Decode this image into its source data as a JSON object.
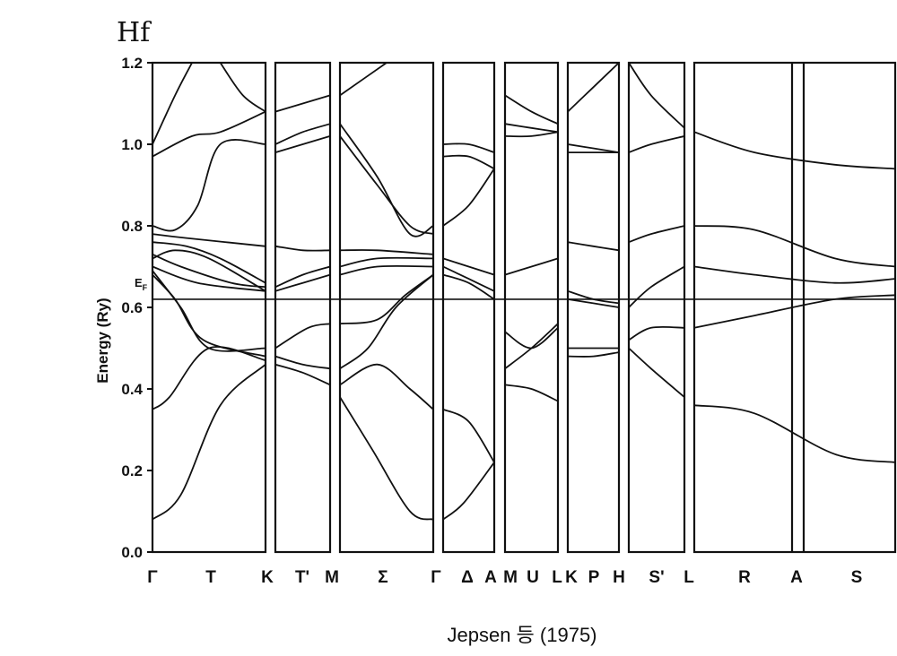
{
  "title": "Hf",
  "caption": "Jepsen 등 (1975)",
  "chart_data": {
    "type": "line",
    "title": "Hf",
    "ylabel": "Energy (Ry)",
    "xlabel": "",
    "ylim": [
      0.0,
      1.2
    ],
    "y_ticks": [
      "0.0",
      "0.2",
      "0.4",
      "0.6",
      "0.8",
      "1.0",
      "1.2"
    ],
    "fermi_level": {
      "label": "E",
      "subscript": "F",
      "energy": 0.62
    },
    "k_points": [
      "Γ",
      "T",
      "K",
      "T'",
      "M",
      "Σ",
      "Γ",
      "Δ",
      "A",
      "M",
      "U",
      "L",
      "K",
      "P",
      "H",
      "S'",
      "L",
      "R",
      "A",
      "S"
    ],
    "panels": [
      {
        "path": "Γ–T–K",
        "start": "Γ",
        "end": "K"
      },
      {
        "path": "K–T'–M",
        "start": "K",
        "end": "M"
      },
      {
        "path": "M–Σ–Γ",
        "start": "M",
        "end": "Γ"
      },
      {
        "path": "Γ–Δ–A",
        "start": "Γ",
        "end": "A"
      },
      {
        "path": "M–U–L",
        "start": "M",
        "end": "L"
      },
      {
        "path": "K–P–H",
        "start": "K",
        "end": "H"
      },
      {
        "path": "H–S'–L",
        "start": "H",
        "end": "L"
      },
      {
        "path": "L–R–A–S",
        "start": "L",
        "end": "S"
      }
    ],
    "bands": [
      {
        "panel": 0,
        "points": [
          [
            0,
            0.08
          ],
          [
            0.25,
            0.14
          ],
          [
            0.6,
            0.36
          ],
          [
            1,
            0.46
          ]
        ]
      },
      {
        "panel": 0,
        "points": [
          [
            0,
            0.35
          ],
          [
            0.15,
            0.38
          ],
          [
            0.5,
            0.5
          ],
          [
            1,
            0.47
          ]
        ]
      },
      {
        "panel": 0,
        "points": [
          [
            0,
            0.68
          ],
          [
            0.2,
            0.62
          ],
          [
            0.45,
            0.52
          ],
          [
            1,
            0.48
          ]
        ]
      },
      {
        "panel": 0,
        "points": [
          [
            0,
            0.69
          ],
          [
            0.25,
            0.6
          ],
          [
            0.5,
            0.5
          ],
          [
            1,
            0.5
          ]
        ]
      },
      {
        "panel": 0,
        "points": [
          [
            0,
            0.7
          ],
          [
            0.4,
            0.66
          ],
          [
            1,
            0.64
          ]
        ]
      },
      {
        "panel": 0,
        "points": [
          [
            0,
            0.72
          ],
          [
            0.2,
            0.74
          ],
          [
            0.5,
            0.72
          ],
          [
            1,
            0.64
          ]
        ]
      },
      {
        "panel": 0,
        "points": [
          [
            0,
            0.73
          ],
          [
            0.25,
            0.7
          ],
          [
            0.7,
            0.66
          ],
          [
            1,
            0.65
          ]
        ]
      },
      {
        "panel": 0,
        "points": [
          [
            0,
            0.76
          ],
          [
            0.3,
            0.75
          ],
          [
            0.6,
            0.72
          ],
          [
            1,
            0.66
          ]
        ]
      },
      {
        "panel": 0,
        "points": [
          [
            0,
            0.78
          ],
          [
            0.3,
            0.77
          ],
          [
            1,
            0.75
          ]
        ]
      },
      {
        "panel": 0,
        "points": [
          [
            0,
            0.8
          ],
          [
            0.2,
            0.79
          ],
          [
            0.4,
            0.85
          ],
          [
            0.6,
            1.0
          ],
          [
            1,
            1.0
          ]
        ]
      },
      {
        "panel": 0,
        "points": [
          [
            0,
            0.97
          ],
          [
            0.35,
            1.02
          ],
          [
            0.6,
            1.03
          ],
          [
            1,
            1.08
          ]
        ]
      },
      {
        "panel": 0,
        "points": [
          [
            0,
            1.0
          ],
          [
            0.2,
            1.12
          ],
          [
            0.35,
            1.2
          ]
        ]
      },
      {
        "panel": 0,
        "points": [
          [
            0.6,
            1.2
          ],
          [
            0.8,
            1.12
          ],
          [
            1,
            1.08
          ]
        ]
      },
      {
        "panel": 1,
        "points": [
          [
            0,
            0.46
          ],
          [
            0.5,
            0.44
          ],
          [
            1,
            0.41
          ]
        ]
      },
      {
        "panel": 1,
        "points": [
          [
            0,
            0.48
          ],
          [
            0.5,
            0.46
          ],
          [
            1,
            0.45
          ]
        ]
      },
      {
        "panel": 1,
        "points": [
          [
            0,
            0.5
          ],
          [
            0.6,
            0.55
          ],
          [
            1,
            0.56
          ]
        ]
      },
      {
        "panel": 1,
        "points": [
          [
            0,
            0.64
          ],
          [
            0.5,
            0.66
          ],
          [
            1,
            0.68
          ]
        ]
      },
      {
        "panel": 1,
        "points": [
          [
            0,
            0.65
          ],
          [
            0.5,
            0.68
          ],
          [
            1,
            0.7
          ]
        ]
      },
      {
        "panel": 1,
        "points": [
          [
            0,
            0.75
          ],
          [
            0.5,
            0.74
          ],
          [
            1,
            0.74
          ]
        ]
      },
      {
        "panel": 1,
        "points": [
          [
            0,
            0.98
          ],
          [
            0.5,
            1.0
          ],
          [
            1,
            1.02
          ]
        ]
      },
      {
        "panel": 1,
        "points": [
          [
            0,
            1.0
          ],
          [
            0.5,
            1.03
          ],
          [
            1,
            1.05
          ]
        ]
      },
      {
        "panel": 1,
        "points": [
          [
            0,
            1.08
          ],
          [
            0.5,
            1.1
          ],
          [
            1,
            1.12
          ]
        ]
      },
      {
        "panel": 2,
        "points": [
          [
            0,
            0.38
          ],
          [
            0.35,
            0.25
          ],
          [
            0.75,
            0.1
          ],
          [
            1,
            0.08
          ]
        ]
      },
      {
        "panel": 2,
        "points": [
          [
            0,
            0.41
          ],
          [
            0.4,
            0.46
          ],
          [
            0.75,
            0.4
          ],
          [
            1,
            0.35
          ]
        ]
      },
      {
        "panel": 2,
        "points": [
          [
            0,
            0.45
          ],
          [
            0.3,
            0.5
          ],
          [
            0.6,
            0.6
          ],
          [
            1,
            0.68
          ]
        ]
      },
      {
        "panel": 2,
        "points": [
          [
            0,
            0.56
          ],
          [
            0.4,
            0.57
          ],
          [
            0.7,
            0.63
          ],
          [
            1,
            0.68
          ]
        ]
      },
      {
        "panel": 2,
        "points": [
          [
            0,
            0.68
          ],
          [
            0.4,
            0.7
          ],
          [
            1,
            0.7
          ]
        ]
      },
      {
        "panel": 2,
        "points": [
          [
            0,
            0.7
          ],
          [
            0.4,
            0.72
          ],
          [
            1,
            0.72
          ]
        ]
      },
      {
        "panel": 2,
        "points": [
          [
            0,
            0.74
          ],
          [
            0.4,
            0.74
          ],
          [
            1,
            0.73
          ]
        ]
      },
      {
        "panel": 2,
        "points": [
          [
            0,
            1.02
          ],
          [
            0.4,
            0.9
          ],
          [
            0.75,
            0.8
          ],
          [
            1,
            0.78
          ]
        ]
      },
      {
        "panel": 2,
        "points": [
          [
            0,
            1.05
          ],
          [
            0.4,
            0.92
          ],
          [
            0.75,
            0.78
          ],
          [
            1,
            0.8
          ]
        ]
      },
      {
        "panel": 2,
        "points": [
          [
            0,
            1.12
          ],
          [
            0.5,
            1.2
          ]
        ]
      },
      {
        "panel": 3,
        "points": [
          [
            0,
            0.08
          ],
          [
            0.4,
            0.12
          ],
          [
            1,
            0.22
          ]
        ]
      },
      {
        "panel": 3,
        "points": [
          [
            0,
            0.35
          ],
          [
            0.5,
            0.32
          ],
          [
            1,
            0.22
          ]
        ]
      },
      {
        "panel": 3,
        "points": [
          [
            0,
            0.68
          ],
          [
            0.5,
            0.66
          ],
          [
            1,
            0.62
          ]
        ]
      },
      {
        "panel": 3,
        "points": [
          [
            0,
            0.7
          ],
          [
            0.5,
            0.67
          ],
          [
            1,
            0.64
          ]
        ]
      },
      {
        "panel": 3,
        "points": [
          [
            0,
            0.72
          ],
          [
            0.5,
            0.7
          ],
          [
            1,
            0.68
          ]
        ]
      },
      {
        "panel": 3,
        "points": [
          [
            0,
            0.8
          ],
          [
            0.5,
            0.85
          ],
          [
            1,
            0.94
          ]
        ]
      },
      {
        "panel": 3,
        "points": [
          [
            0,
            0.97
          ],
          [
            0.5,
            0.97
          ],
          [
            1,
            0.94
          ]
        ]
      },
      {
        "panel": 3,
        "points": [
          [
            0,
            1.0
          ],
          [
            0.5,
            1.0
          ],
          [
            1,
            0.98
          ]
        ]
      },
      {
        "panel": 4,
        "points": [
          [
            0,
            0.41
          ],
          [
            0.5,
            0.4
          ],
          [
            1,
            0.37
          ]
        ]
      },
      {
        "panel": 4,
        "points": [
          [
            0,
            0.45
          ],
          [
            0.5,
            0.5
          ],
          [
            1,
            0.56
          ]
        ]
      },
      {
        "panel": 4,
        "points": [
          [
            0,
            0.54
          ],
          [
            0.5,
            0.5
          ],
          [
            1,
            0.55
          ]
        ]
      },
      {
        "panel": 4,
        "points": [
          [
            0,
            0.68
          ],
          [
            0.5,
            0.7
          ],
          [
            1,
            0.72
          ]
        ]
      },
      {
        "panel": 4,
        "points": [
          [
            0,
            1.02
          ],
          [
            0.5,
            1.02
          ],
          [
            1,
            1.03
          ]
        ]
      },
      {
        "panel": 4,
        "points": [
          [
            0,
            1.05
          ],
          [
            0.5,
            1.04
          ],
          [
            1,
            1.03
          ]
        ]
      },
      {
        "panel": 4,
        "points": [
          [
            0,
            1.12
          ],
          [
            0.5,
            1.08
          ],
          [
            1,
            1.05
          ]
        ]
      },
      {
        "panel": 5,
        "points": [
          [
            0,
            0.48
          ],
          [
            0.5,
            0.48
          ],
          [
            1,
            0.49
          ]
        ]
      },
      {
        "panel": 5,
        "points": [
          [
            0,
            0.5
          ],
          [
            0.5,
            0.5
          ],
          [
            1,
            0.5
          ]
        ]
      },
      {
        "panel": 5,
        "points": [
          [
            0,
            0.62
          ],
          [
            0.5,
            0.61
          ],
          [
            1,
            0.6
          ]
        ]
      },
      {
        "panel": 5,
        "points": [
          [
            0,
            0.64
          ],
          [
            0.5,
            0.62
          ],
          [
            1,
            0.61
          ]
        ]
      },
      {
        "panel": 5,
        "points": [
          [
            0,
            0.76
          ],
          [
            0.5,
            0.75
          ],
          [
            1,
            0.74
          ]
        ]
      },
      {
        "panel": 5,
        "points": [
          [
            0,
            0.98
          ],
          [
            0.5,
            0.98
          ],
          [
            1,
            0.98
          ]
        ]
      },
      {
        "panel": 5,
        "points": [
          [
            0,
            1.0
          ],
          [
            0.5,
            0.99
          ],
          [
            1,
            0.98
          ]
        ]
      },
      {
        "panel": 5,
        "points": [
          [
            0,
            1.08
          ],
          [
            0.5,
            1.14
          ],
          [
            1,
            1.2
          ]
        ]
      },
      {
        "panel": 6,
        "points": [
          [
            0,
            0.5
          ],
          [
            0.4,
            0.45
          ],
          [
            1,
            0.38
          ]
        ]
      },
      {
        "panel": 6,
        "points": [
          [
            0,
            0.52
          ],
          [
            0.4,
            0.55
          ],
          [
            1,
            0.55
          ]
        ]
      },
      {
        "panel": 6,
        "points": [
          [
            0,
            0.6
          ],
          [
            0.4,
            0.65
          ],
          [
            1,
            0.7
          ]
        ]
      },
      {
        "panel": 6,
        "points": [
          [
            0,
            0.76
          ],
          [
            0.4,
            0.78
          ],
          [
            1,
            0.8
          ]
        ]
      },
      {
        "panel": 6,
        "points": [
          [
            0,
            0.98
          ],
          [
            0.4,
            1.0
          ],
          [
            1,
            1.02
          ]
        ]
      },
      {
        "panel": 6,
        "points": [
          [
            0,
            1.2
          ],
          [
            0.4,
            1.12
          ],
          [
            1,
            1.04
          ]
        ]
      },
      {
        "panel": 7,
        "points": [
          [
            0,
            0.36
          ],
          [
            0.3,
            0.34
          ],
          [
            0.7,
            0.24
          ],
          [
            1,
            0.22
          ]
        ]
      },
      {
        "panel": 7,
        "points": [
          [
            0,
            0.55
          ],
          [
            0.3,
            0.58
          ],
          [
            0.7,
            0.62
          ],
          [
            1,
            0.63
          ]
        ]
      },
      {
        "panel": 7,
        "points": [
          [
            0,
            0.7
          ],
          [
            0.3,
            0.68
          ],
          [
            0.7,
            0.66
          ],
          [
            1,
            0.67
          ]
        ]
      },
      {
        "panel": 7,
        "points": [
          [
            0,
            0.8
          ],
          [
            0.3,
            0.79
          ],
          [
            0.7,
            0.72
          ],
          [
            1,
            0.7
          ]
        ]
      },
      {
        "panel": 7,
        "points": [
          [
            0,
            1.03
          ],
          [
            0.3,
            0.98
          ],
          [
            0.7,
            0.95
          ],
          [
            1,
            0.94
          ]
        ]
      }
    ]
  }
}
